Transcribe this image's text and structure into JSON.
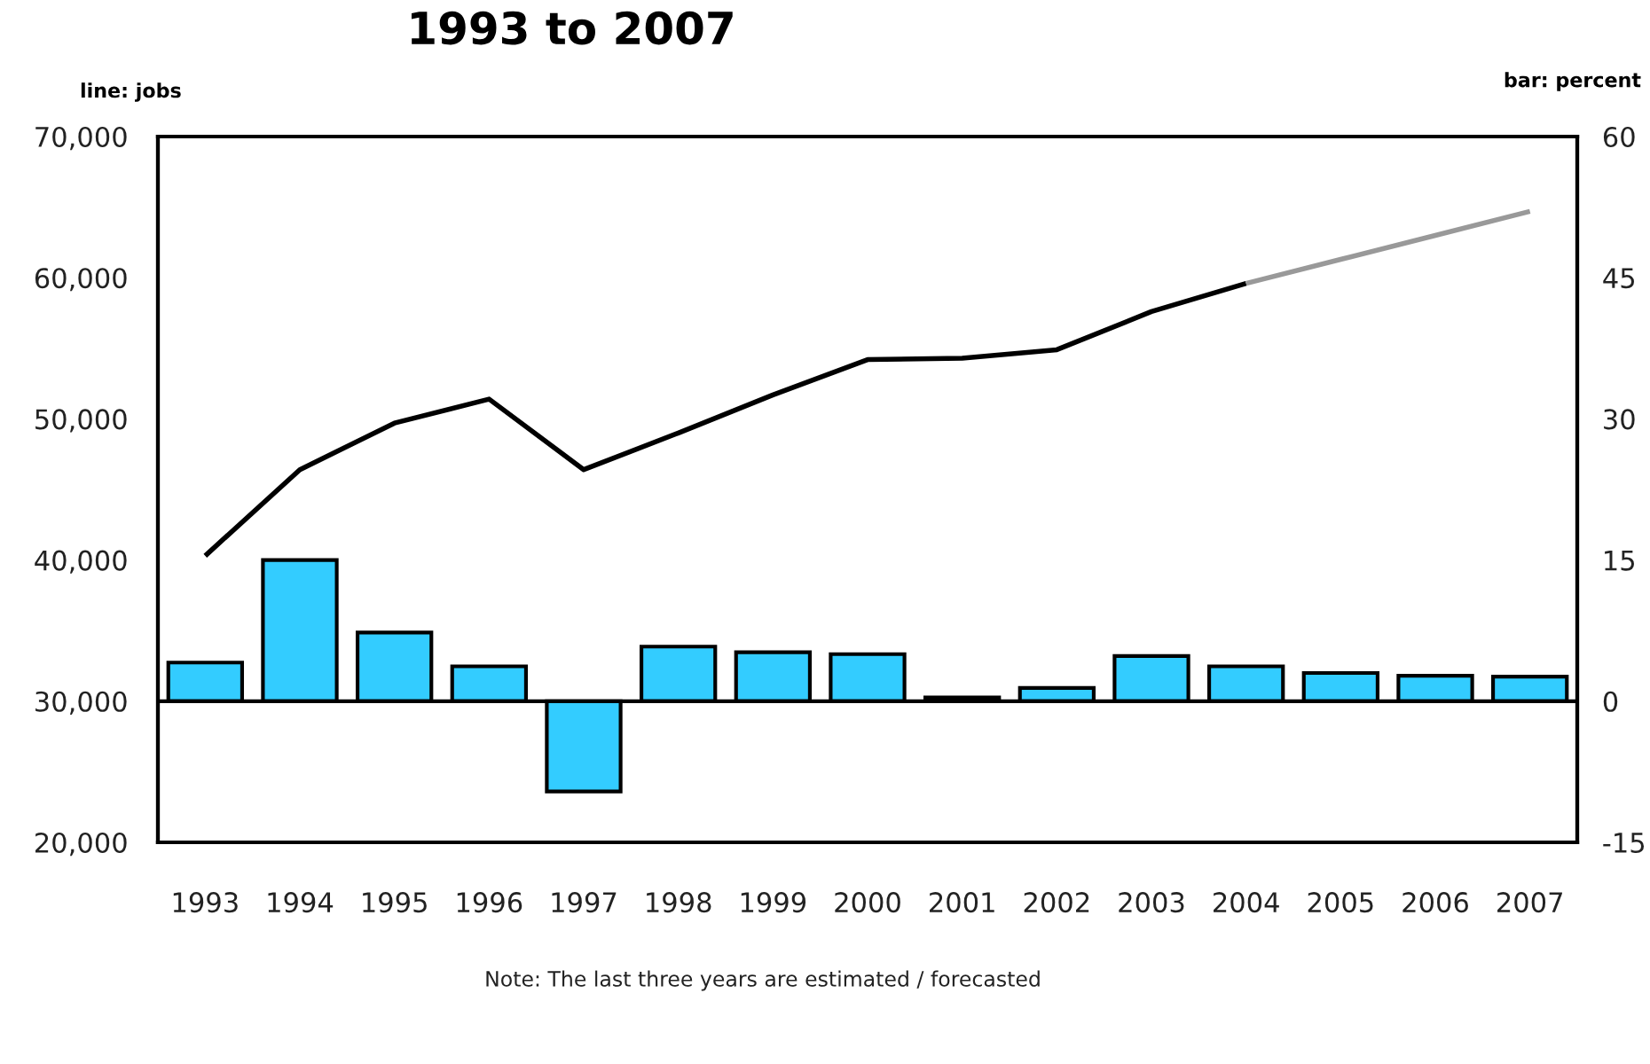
{
  "chart_data": {
    "type": "bar",
    "title": "1993 to 2007",
    "ylabel": "line: jobs",
    "y2label": "bar: percent",
    "annotations": [
      "Note: The last three years are estimated / forecasted"
    ],
    "categories": [
      "1993",
      "1994",
      "1995",
      "1996",
      "1997",
      "1998",
      "1999",
      "2000",
      "2001",
      "2002",
      "2003",
      "2004",
      "2005",
      "2006",
      "2007"
    ],
    "series": [
      {
        "axis": "y2",
        "color": "#33ccff",
        "values": [
          4.1,
          15.0,
          7.3,
          3.7,
          -9.6,
          5.8,
          5.2,
          5.0,
          0.4,
          1.4,
          4.8,
          3.7,
          3.0,
          2.7,
          2.6
        ]
      },
      {
        "type": "line",
        "color": "#000000",
        "values": [
          40300,
          46400,
          49700,
          51400,
          46400,
          49000,
          51700,
          54200,
          54300,
          54900,
          57600,
          59600,
          null,
          null,
          null
        ]
      },
      {
        "type": "line",
        "color": "#999999",
        "values": [
          null,
          null,
          null,
          null,
          null,
          null,
          null,
          null,
          null,
          null,
          null,
          59600,
          61300,
          63000,
          64700
        ]
      }
    ],
    "ylim": [
      20000,
      70000
    ],
    "yticks": [
      {
        "value": 20000,
        "label": "20,000"
      },
      {
        "value": 30000,
        "label": "30,000"
      },
      {
        "value": 40000,
        "label": "40,000"
      },
      {
        "value": 50000,
        "label": "50,000"
      },
      {
        "value": 60000,
        "label": "60,000"
      },
      {
        "value": 70000,
        "label": "70,000"
      }
    ],
    "y2lim": [
      -15,
      60
    ],
    "y2ticks": [
      -15,
      0,
      15,
      30,
      45,
      60
    ],
    "ref_lines": [
      {
        "axis": "y2",
        "value": 0,
        "color": "#000000"
      }
    ]
  }
}
